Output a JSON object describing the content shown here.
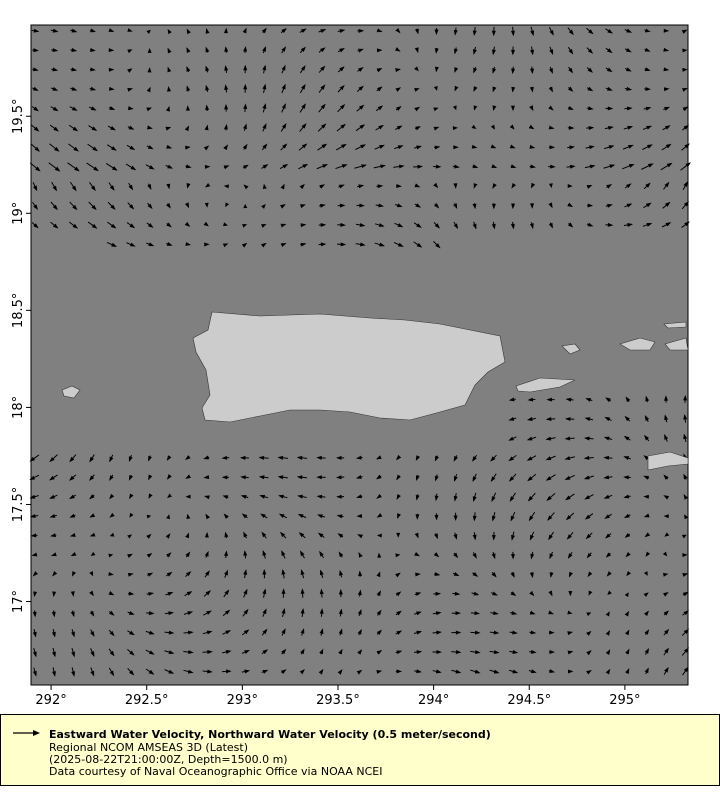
{
  "map": {
    "lon_range": [
      291.895,
      295.33
    ],
    "lat_range": [
      16.57,
      19.97
    ],
    "ocean_color": "#808080",
    "land_color": "#cccccc",
    "vector_color": "#000000",
    "x_ticks": [
      "292°",
      "292.5°",
      "293°",
      "293.5°",
      "294°",
      "294.5°",
      "295°"
    ],
    "x_tick_values": [
      292,
      292.5,
      293,
      293.5,
      294,
      294.5,
      295
    ],
    "y_ticks": [
      "17°",
      "17.5°",
      "18°",
      "18.5°",
      "19°",
      "19.5°"
    ],
    "y_tick_values": [
      17,
      17.5,
      18,
      18.5,
      19,
      19.5
    ],
    "vector_grid_spacing_deg": 0.1
  },
  "legend": {
    "arrow_icon": "vector-arrow",
    "title": "Eastward Water Velocity, Northward Water Velocity (0.5 meter/second)",
    "line1": "Regional NCOM AMSEAS 3D (Latest)",
    "line2": "(2025-08-22T21:00:00Z, Depth=1500.0 m)",
    "line3": "Data courtesy of Naval Oceanographic Office via NOAA NCEI",
    "background": "#ffffcc"
  }
}
